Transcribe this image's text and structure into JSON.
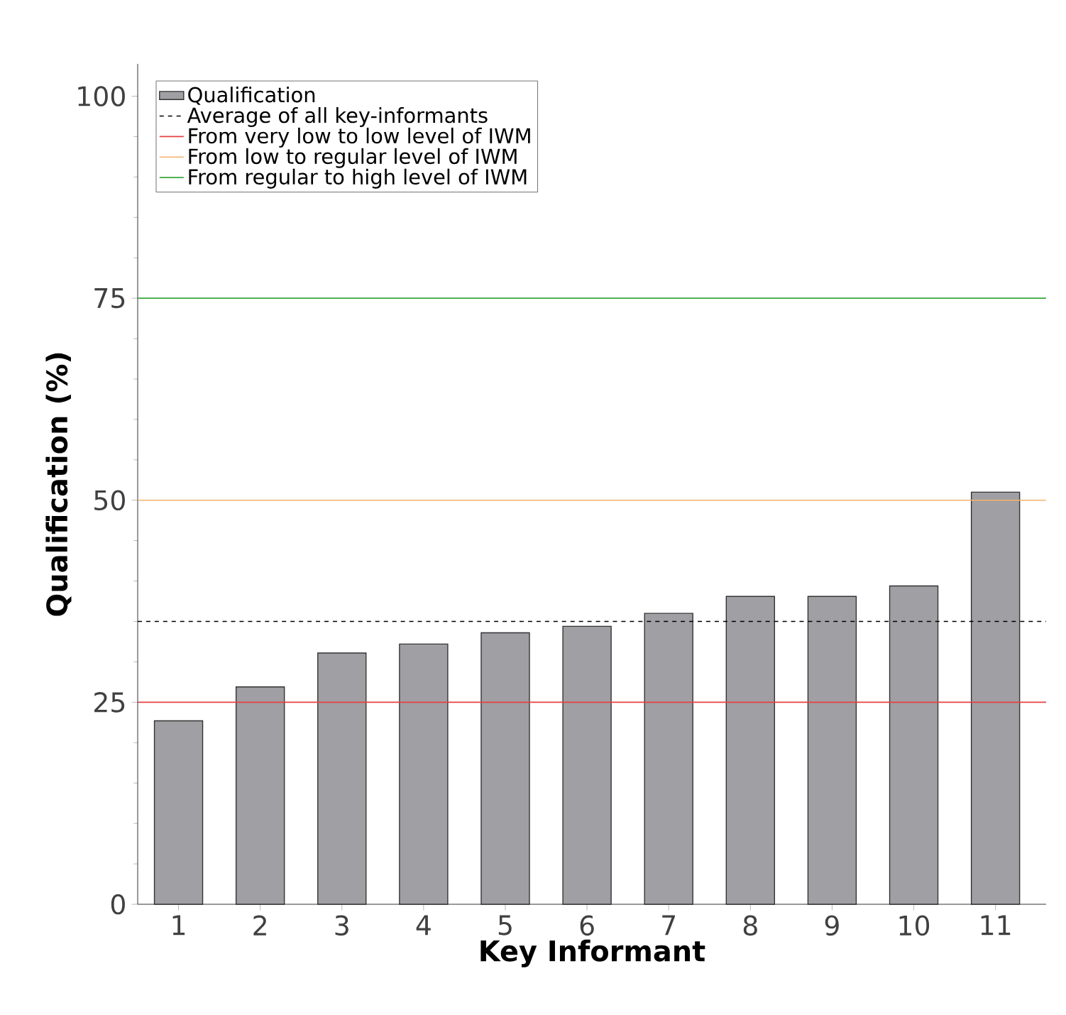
{
  "chart_data": {
    "type": "bar",
    "xlabel": "Key Informant",
    "ylabel": "Qualification (%)",
    "categories": [
      "1",
      "2",
      "3",
      "4",
      "5",
      "6",
      "7",
      "8",
      "9",
      "10",
      "11"
    ],
    "series": [
      {
        "name": "Qualification",
        "color": "#a09fa4",
        "values": [
          22.7,
          26.9,
          31.1,
          32.2,
          33.6,
          34.4,
          36.0,
          38.1,
          38.1,
          39.4,
          51.0
        ]
      }
    ],
    "ylim": [
      0,
      104
    ],
    "yticks": [
      0,
      25,
      50,
      75,
      100
    ],
    "ref_lines": [
      {
        "axis": "y",
        "value": 35,
        "label": "Average of all key-informants",
        "color": "#000000",
        "line_style": "dashed"
      },
      {
        "axis": "y",
        "value": 25,
        "label": "From very low to low level of IWM",
        "color": "#e84040",
        "line_style": "solid"
      },
      {
        "axis": "y",
        "value": 50,
        "label": "From low to regular level of IWM",
        "color": "#f5b26b",
        "line_style": "solid"
      },
      {
        "axis": "y",
        "value": 75,
        "label": "From regular to high level of IWM",
        "color": "#3aa63a",
        "line_style": "solid"
      }
    ],
    "legend": "top left",
    "grid": false
  }
}
